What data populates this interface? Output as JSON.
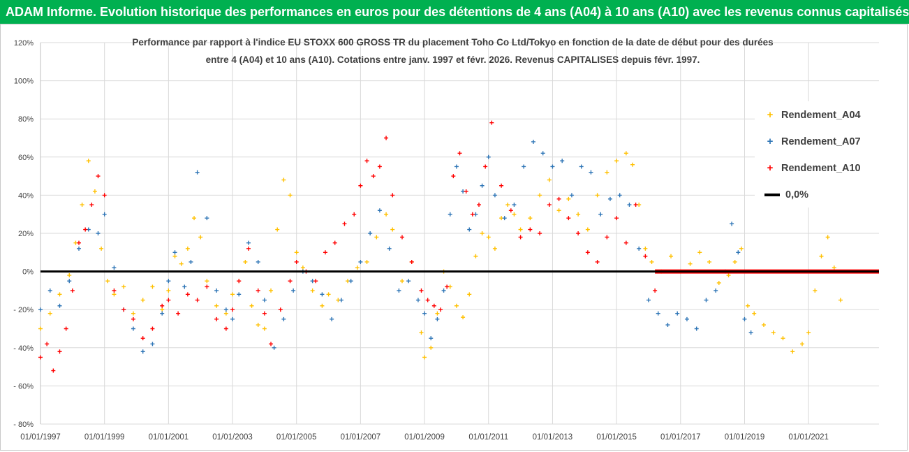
{
  "header": {
    "banner_title": "ADAM Informe. Evolution historique des performances en euros pour des détentions de 4 ans (A04) à 10 ans (A10) avec les revenus connus capitalisés"
  },
  "colors": {
    "banner_bg": "#00b050",
    "series_a04": "#ffc000",
    "series_a07": "#2e75b6",
    "series_a10": "#ff0000",
    "zero_line": "#000000"
  },
  "chart_data": {
    "type": "scatter",
    "title_line1": "Performance par rapport à l'indice EU STOXX 600 GROSS TR  du placement Toho Co Ltd/Tokyo en fonction de la date de début pour des durées",
    "title_line2": "entre 4 (A04) et 10 ans (A10).  Cotations entre janv. 1997 et févr. 2026. Revenus CAPITALISES depuis févr. 1997.",
    "xlabel": "",
    "ylabel": "",
    "xlim": [
      1997.0,
      2023.2
    ],
    "ylim": [
      -80,
      120
    ],
    "y_ticks": [
      -80,
      -60,
      -40,
      -20,
      0,
      20,
      40,
      60,
      80,
      100,
      120
    ],
    "y_tick_labels": [
      "- 80%",
      "- 60%",
      "- 40%",
      "- 20%",
      "0%",
      "20%",
      "40%",
      "60%",
      "80%",
      "100%",
      "120%"
    ],
    "x_ticks": [
      1997,
      1999,
      2001,
      2003,
      2005,
      2007,
      2009,
      2011,
      2013,
      2015,
      2017,
      2019,
      2021
    ],
    "x_tick_labels": [
      "01/01/1997",
      "01/01/1999",
      "01/01/2001",
      "01/01/2003",
      "01/01/2005",
      "01/01/2007",
      "01/01/2009",
      "01/01/2011",
      "01/01/2013",
      "01/01/2015",
      "01/01/2017",
      "01/01/2019",
      "01/01/2021"
    ],
    "grid": true,
    "legend_position": "top-right",
    "series": [
      {
        "name": "Rendement_A04",
        "marker": "+",
        "x": [
          1997.0,
          1997.3,
          1997.6,
          1997.9,
          1998.1,
          1998.3,
          1998.5,
          1998.7,
          1998.9,
          1999.1,
          1999.3,
          1999.6,
          1999.9,
          2000.2,
          2000.5,
          2000.8,
          2001.0,
          2001.2,
          2001.4,
          2001.6,
          2001.8,
          2002.0,
          2002.2,
          2002.5,
          2002.8,
          2003.0,
          2003.2,
          2003.4,
          2003.6,
          2003.8,
          2004.0,
          2004.2,
          2004.4,
          2004.6,
          2004.8,
          2005.0,
          2005.2,
          2005.5,
          2005.8,
          2006.0,
          2006.3,
          2006.6,
          2006.9,
          2007.2,
          2007.5,
          2007.8,
          2008.0,
          2008.3,
          2008.6,
          2008.9,
          2009.0,
          2009.2,
          2009.4,
          2009.6,
          2009.8,
          2010.0,
          2010.2,
          2010.4,
          2010.6,
          2010.8,
          2011.0,
          2011.2,
          2011.4,
          2011.6,
          2011.8,
          2012.0,
          2012.3,
          2012.6,
          2012.9,
          2013.2,
          2013.5,
          2013.8,
          2014.1,
          2014.4,
          2014.7,
          2015.0,
          2015.3,
          2015.5,
          2015.7,
          2015.9,
          2016.1,
          2016.4,
          2016.7,
          2017.0,
          2017.3,
          2017.6,
          2017.9,
          2018.2,
          2018.5,
          2018.7,
          2018.9,
          2019.1,
          2019.3,
          2019.6,
          2019.9,
          2020.2,
          2020.5,
          2020.8,
          2021.0,
          2021.2,
          2021.4,
          2021.6,
          2021.8,
          2022.0
        ],
        "y": [
          -30,
          -22,
          -12,
          -2,
          15,
          35,
          58,
          42,
          12,
          -5,
          -12,
          -8,
          -22,
          -15,
          -8,
          -20,
          -10,
          8,
          4,
          12,
          28,
          18,
          -5,
          -18,
          -22,
          -12,
          -5,
          5,
          -18,
          -28,
          -30,
          -10,
          22,
          48,
          40,
          10,
          2,
          -10,
          -18,
          -12,
          -15,
          -5,
          2,
          5,
          18,
          30,
          22,
          -5,
          5,
          -32,
          -45,
          -40,
          -22,
          0,
          -8,
          -18,
          -24,
          -12,
          8,
          20,
          18,
          12,
          28,
          35,
          30,
          22,
          28,
          40,
          48,
          32,
          38,
          30,
          22,
          40,
          52,
          58,
          62,
          56,
          35,
          12,
          5,
          0,
          8,
          0,
          4,
          10,
          5,
          -6,
          -2,
          5,
          12,
          -18,
          -22,
          -28,
          -32,
          -35,
          -42,
          -38,
          -32,
          -10,
          8,
          18,
          2,
          -15
        ]
      },
      {
        "name": "Rendement_A07",
        "marker": "+",
        "x": [
          1997.0,
          1997.3,
          1997.6,
          1997.9,
          1998.2,
          1998.5,
          1998.8,
          1999.0,
          1999.3,
          1999.6,
          1999.9,
          2000.2,
          2000.5,
          2000.8,
          2001.0,
          2001.2,
          2001.5,
          2001.7,
          2001.9,
          2002.2,
          2002.5,
          2002.8,
          2003.0,
          2003.2,
          2003.5,
          2003.8,
          2004.0,
          2004.3,
          2004.6,
          2004.9,
          2005.2,
          2005.5,
          2005.8,
          2006.1,
          2006.4,
          2006.7,
          2007.0,
          2007.3,
          2007.6,
          2007.9,
          2008.2,
          2008.5,
          2008.8,
          2009.0,
          2009.2,
          2009.4,
          2009.6,
          2009.8,
          2010.0,
          2010.2,
          2010.4,
          2010.6,
          2010.8,
          2011.0,
          2011.2,
          2011.5,
          2011.8,
          2012.1,
          2012.4,
          2012.7,
          2013.0,
          2013.3,
          2013.6,
          2013.9,
          2014.2,
          2014.5,
          2014.8,
          2015.1,
          2015.4,
          2015.7,
          2016.0,
          2016.3,
          2016.6,
          2016.9,
          2017.2,
          2017.5,
          2017.8,
          2018.1,
          2018.4,
          2018.6,
          2018.8,
          2019.0,
          2019.2
        ],
        "y": [
          -20,
          -10,
          -18,
          -5,
          12,
          22,
          20,
          30,
          2,
          -20,
          -30,
          -42,
          -38,
          -22,
          -5,
          10,
          -8,
          5,
          52,
          28,
          -10,
          -20,
          -25,
          -12,
          15,
          5,
          -15,
          -40,
          -25,
          -10,
          0,
          -5,
          -12,
          -25,
          -15,
          -5,
          5,
          20,
          32,
          12,
          -10,
          -5,
          -15,
          -22,
          -35,
          -25,
          -10,
          30,
          55,
          42,
          22,
          30,
          45,
          60,
          40,
          28,
          35,
          55,
          68,
          62,
          55,
          58,
          40,
          55,
          52,
          30,
          38,
          40,
          35,
          12,
          -15,
          -22,
          -28,
          -22,
          -25,
          -30,
          -15,
          -10,
          0,
          25,
          10,
          -25,
          -32
        ]
      },
      {
        "name": "Rendement_A10",
        "marker": "+",
        "x": [
          1997.0,
          1997.2,
          1997.4,
          1997.6,
          1997.8,
          1998.0,
          1998.2,
          1998.4,
          1998.6,
          1998.8,
          1999.0,
          1999.3,
          1999.6,
          1999.9,
          2000.2,
          2000.5,
          2000.8,
          2001.0,
          2001.3,
          2001.6,
          2001.9,
          2002.2,
          2002.5,
          2002.8,
          2003.0,
          2003.2,
          2003.5,
          2003.8,
          2004.0,
          2004.2,
          2004.5,
          2004.8,
          2005.0,
          2005.3,
          2005.6,
          2005.9,
          2006.2,
          2006.5,
          2006.8,
          2007.0,
          2007.2,
          2007.4,
          2007.6,
          2007.8,
          2008.0,
          2008.3,
          2008.6,
          2008.9,
          2009.1,
          2009.3,
          2009.5,
          2009.7,
          2009.9,
          2010.1,
          2010.3,
          2010.5,
          2010.7,
          2010.9,
          2011.1,
          2011.4,
          2011.7,
          2012.0,
          2012.3,
          2012.6,
          2012.9,
          2013.2,
          2013.5,
          2013.8,
          2014.1,
          2014.4,
          2014.7,
          2015.0,
          2015.3,
          2015.6,
          2015.9,
          2016.2
        ],
        "y": [
          -45,
          -38,
          -52,
          -42,
          -30,
          -10,
          15,
          22,
          35,
          50,
          40,
          -10,
          -20,
          -25,
          -35,
          -30,
          -18,
          -15,
          -22,
          -12,
          -15,
          -8,
          -25,
          -30,
          -20,
          -5,
          12,
          -10,
          -22,
          -38,
          -20,
          -5,
          5,
          0,
          -5,
          10,
          15,
          25,
          30,
          45,
          58,
          50,
          55,
          70,
          40,
          18,
          5,
          -10,
          -15,
          -18,
          -20,
          -8,
          50,
          62,
          42,
          30,
          35,
          55,
          78,
          45,
          32,
          18,
          22,
          20,
          35,
          38,
          28,
          20,
          10,
          5,
          18,
          28,
          15,
          35,
          8,
          -10
        ]
      },
      {
        "name": "0,0%",
        "type": "line",
        "x": [
          1997.0,
          2023.2
        ],
        "y": [
          0,
          0
        ]
      }
    ],
    "a10_zero_band": {
      "x_from": 2016.2,
      "x_to": 2023.2,
      "y": 0
    }
  }
}
